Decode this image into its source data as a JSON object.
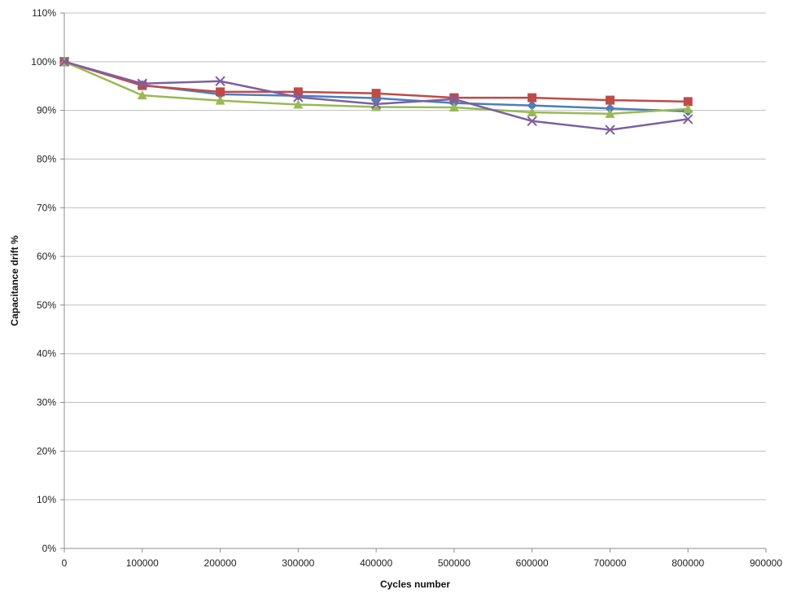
{
  "chart_data": {
    "type": "line",
    "title": "",
    "xlabel": "Cycles number",
    "ylabel": "Capacitance drift %",
    "xlim": [
      0,
      900000
    ],
    "ylim": [
      0,
      1.1
    ],
    "x_ticks": [
      "0",
      "100000",
      "200000",
      "300000",
      "400000",
      "500000",
      "600000",
      "700000",
      "800000",
      "900000"
    ],
    "y_ticks": [
      "0%",
      "10%",
      "20%",
      "30%",
      "40%",
      "50%",
      "60%",
      "70%",
      "80%",
      "90%",
      "100%",
      "110%"
    ],
    "grid": "horizontal",
    "legend": "none",
    "x": [
      0,
      100000,
      200000,
      300000,
      400000,
      500000,
      600000,
      700000,
      800000
    ],
    "series": [
      {
        "color": "#4a7ebb",
        "marker": "diamond",
        "values": [
          1.0,
          0.952,
          0.933,
          0.93,
          0.925,
          0.915,
          0.91,
          0.904,
          0.898
        ]
      },
      {
        "color": "#be4b48",
        "marker": "square",
        "values": [
          1.0,
          0.951,
          0.938,
          0.938,
          0.935,
          0.926,
          0.926,
          0.921,
          0.918
        ]
      },
      {
        "color": "#98b954",
        "marker": "triangle",
        "values": [
          1.0,
          0.931,
          0.92,
          0.912,
          0.907,
          0.906,
          0.896,
          0.893,
          0.903
        ]
      },
      {
        "color": "#7d60a0",
        "marker": "x",
        "values": [
          1.0,
          0.955,
          0.96,
          0.927,
          0.913,
          0.923,
          0.878,
          0.86,
          0.882
        ]
      }
    ]
  }
}
